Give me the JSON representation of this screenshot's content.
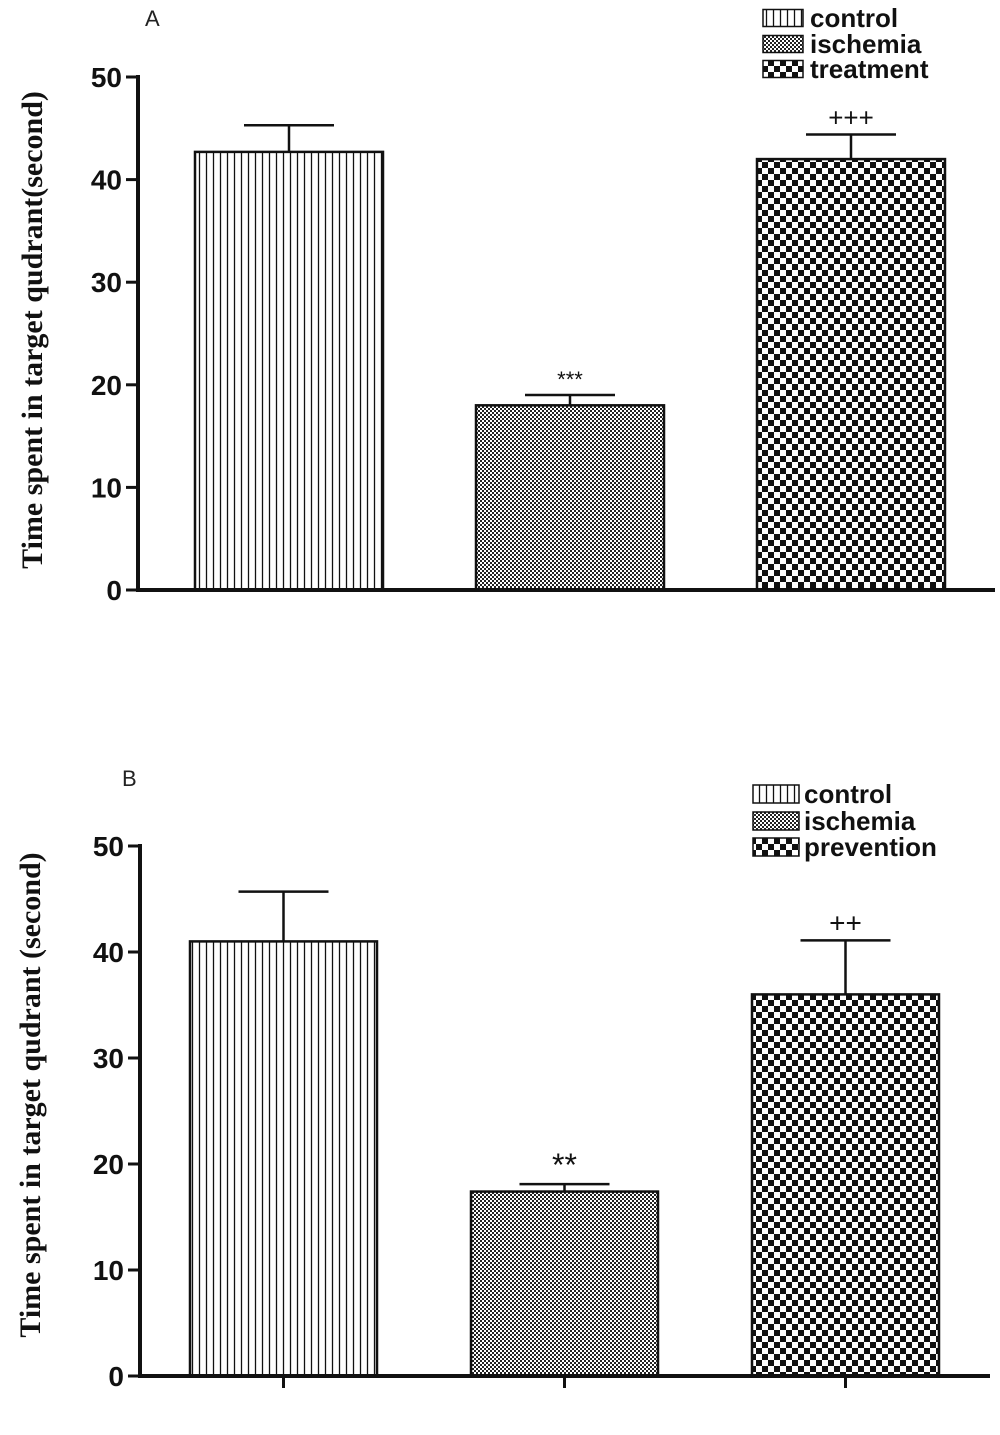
{
  "chart_data": [
    {
      "type": "bar",
      "panel_label": "A",
      "title": "",
      "xlabel": "",
      "ylabel": "Time spent in target qudrant(second)",
      "ylim": [
        0,
        50
      ],
      "yticks": [
        "0",
        "10",
        "20",
        "30",
        "40",
        "50"
      ],
      "grid": false,
      "legend_position": "top-right",
      "categories": [
        "control",
        "ischemia",
        "treatment"
      ],
      "values": [
        42.7,
        18.0,
        42.0
      ],
      "error": [
        2.6,
        1.0,
        2.4
      ],
      "significance": [
        "",
        "***",
        "+++"
      ],
      "legend": [
        "control",
        "ischemia",
        "treatment"
      ],
      "patterns": [
        "vertical-lines",
        "fine-checker",
        "coarse-checker"
      ]
    },
    {
      "type": "bar",
      "panel_label": "B",
      "title": "",
      "xlabel": "",
      "ylabel": "Time spent in target qudrant (second)",
      "ylim": [
        0,
        50
      ],
      "yticks": [
        "0",
        "10",
        "20",
        "30",
        "40",
        "50"
      ],
      "grid": false,
      "legend_position": "top-right",
      "categories": [
        "control",
        "ischemia",
        "prevention"
      ],
      "values": [
        41.0,
        17.4,
        36.0
      ],
      "error": [
        4.7,
        0.7,
        5.1
      ],
      "significance": [
        "",
        "**",
        "++"
      ],
      "legend": [
        "control",
        "ischemia",
        "prevention"
      ],
      "patterns": [
        "vertical-lines",
        "fine-checker",
        "coarse-checker"
      ]
    }
  ]
}
